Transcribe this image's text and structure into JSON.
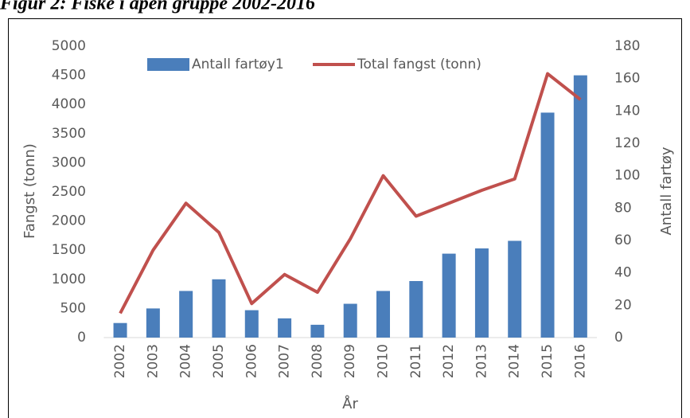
{
  "chart_data": {
    "type": "bar-line",
    "title": "Figur 2: Fiske i åpen gruppe 2002-2016",
    "x_label": "År",
    "y_label": "Fangst (tonn)",
    "y2_label": "Antall fartøy",
    "categories": [
      "2002",
      "2003",
      "2004",
      "2005",
      "2006",
      "2007",
      "2008",
      "2009",
      "2010",
      "2011",
      "2012",
      "2013",
      "2014",
      "2015",
      "2016"
    ],
    "series": [
      {
        "name": "Antall fartøy1",
        "type": "bar",
        "color": "#4a7ebb",
        "axis": "y",
        "values": [
          250,
          500,
          800,
          1000,
          470,
          330,
          220,
          580,
          800,
          970,
          1440,
          1530,
          1660,
          3860,
          4500
        ]
      },
      {
        "name": "Total fangst (tonn)",
        "type": "line",
        "color": "#c0504d",
        "axis": "y2",
        "values": [
          15,
          54,
          83,
          65,
          21,
          39,
          28,
          61,
          100,
          75,
          83,
          91,
          98,
          163,
          147
        ]
      }
    ],
    "ylim": [
      0,
      5000
    ],
    "yticks": [
      0,
      500,
      1000,
      1500,
      2000,
      2500,
      3000,
      3500,
      4000,
      4500,
      5000
    ],
    "y2lim": [
      0,
      180
    ],
    "y2ticks": [
      0,
      20,
      40,
      60,
      80,
      100,
      120,
      140,
      160,
      180
    ],
    "legend": "top",
    "grid": false
  }
}
